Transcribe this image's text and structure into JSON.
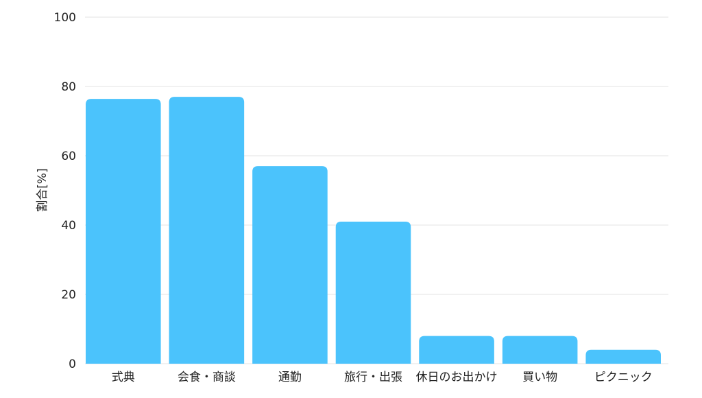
{
  "chart_data": {
    "type": "bar",
    "title": "",
    "xlabel": "",
    "ylabel": "割合[%]",
    "ylim": [
      0,
      100
    ],
    "yticks": [
      0,
      20,
      40,
      60,
      80,
      100
    ],
    "grid": true,
    "categories": [
      "式典",
      "会食・商談",
      "通勤",
      "旅行・出張",
      "休日のお出かけ",
      "買い物",
      "ピクニック"
    ],
    "values": [
      76.4,
      77,
      57,
      41,
      8,
      8,
      4
    ],
    "colors": {
      "bar": "#4bc3fc",
      "grid": "#e3e3e3"
    }
  }
}
